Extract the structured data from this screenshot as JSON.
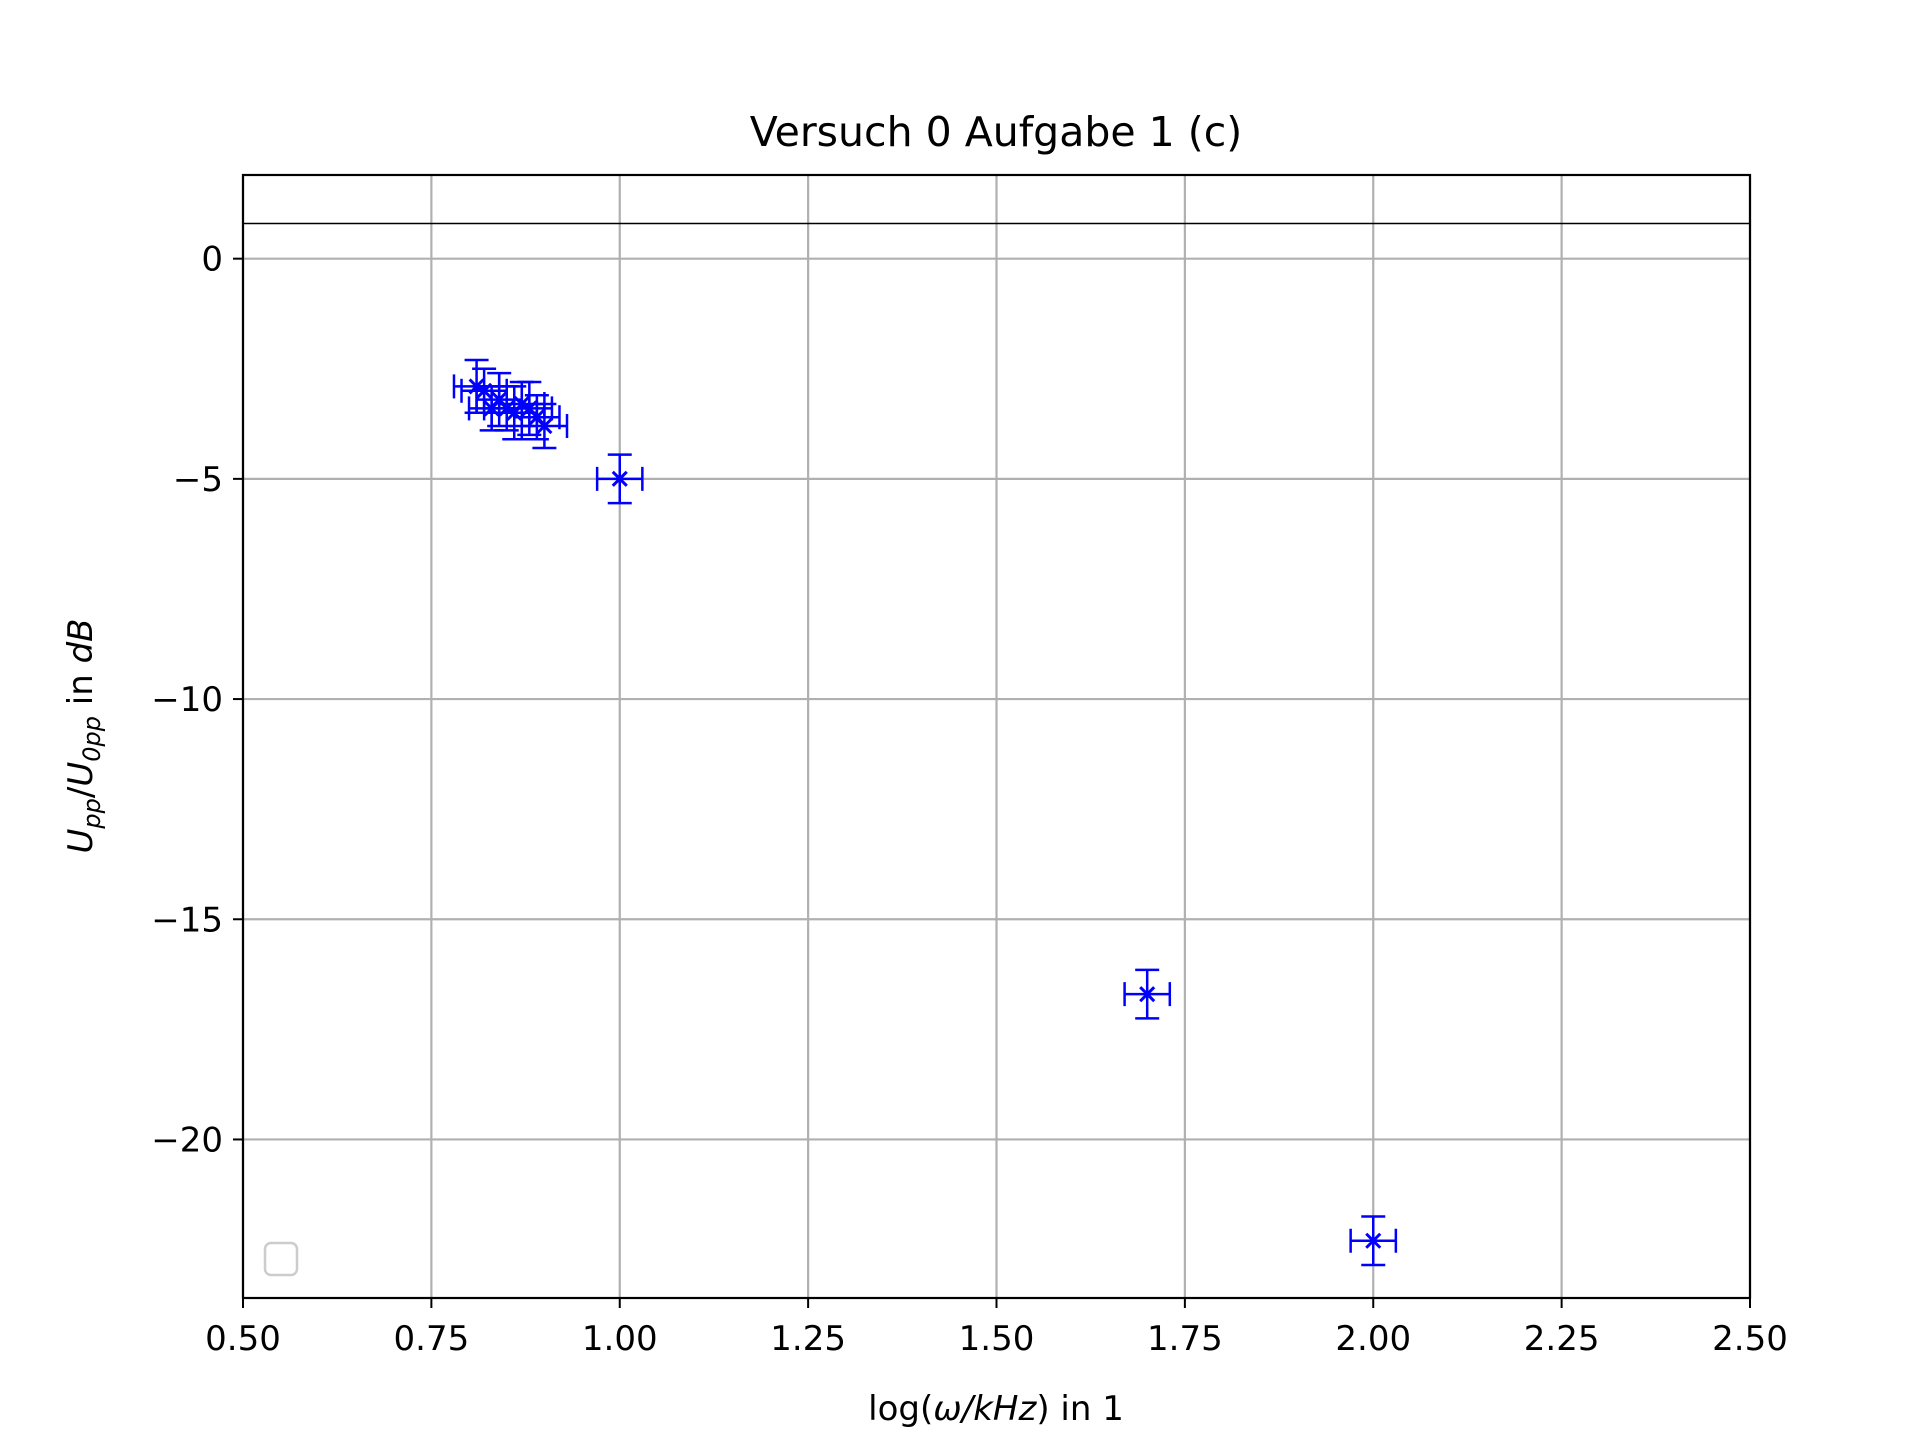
{
  "chart_data": {
    "type": "scatter",
    "title": "Versuch 0 Aufgabe 1 (c)",
    "xlabel": {
      "pre": "log(",
      "ital": "ω/kHz",
      "post": ") in 1"
    },
    "ylabel": {
      "main1": "U",
      "sub1": "pp",
      "slash": "/",
      "main2": "U",
      "sub2": "0pp",
      "post": " in ",
      "ital": "dB"
    },
    "xlim": [
      0.5,
      2.5
    ],
    "ylim": [
      -23.6,
      1.9
    ],
    "xticks": [
      "0.50",
      "0.75",
      "1.00",
      "1.25",
      "1.50",
      "1.75",
      "2.00",
      "2.25",
      "2.50"
    ],
    "yticks": [
      "0",
      "−5",
      "−10",
      "−15",
      "−20"
    ],
    "ytick_values": [
      0,
      -5,
      -10,
      -15,
      -20
    ],
    "grid": true,
    "hline": 0.8,
    "legend": "lower-left, empty",
    "colors": {
      "points": "#0000ff",
      "grid": "#b0b0b0",
      "hline": "#000000"
    },
    "points": [
      {
        "x": 0.81,
        "y": -2.9,
        "xerr": 0.03,
        "yerr": 0.6
      },
      {
        "x": 0.82,
        "y": -3.0,
        "xerr": 0.03,
        "yerr": 0.5
      },
      {
        "x": 0.83,
        "y": -3.4,
        "xerr": 0.03,
        "yerr": 0.5
      },
      {
        "x": 0.84,
        "y": -3.2,
        "xerr": 0.03,
        "yerr": 0.6
      },
      {
        "x": 0.85,
        "y": -3.4,
        "xerr": 0.03,
        "yerr": 0.5
      },
      {
        "x": 0.86,
        "y": -3.5,
        "xerr": 0.03,
        "yerr": 0.6
      },
      {
        "x": 0.87,
        "y": -3.3,
        "xerr": 0.03,
        "yerr": 0.5
      },
      {
        "x": 0.88,
        "y": -3.4,
        "xerr": 0.03,
        "yerr": 0.6
      },
      {
        "x": 0.89,
        "y": -3.6,
        "xerr": 0.03,
        "yerr": 0.5
      },
      {
        "x": 0.9,
        "y": -3.8,
        "xerr": 0.03,
        "yerr": 0.5
      },
      {
        "x": 1.0,
        "y": -5.0,
        "xerr": 0.03,
        "yerr": 0.55
      },
      {
        "x": 1.7,
        "y": -16.7,
        "xerr": 0.03,
        "yerr": 0.55
      },
      {
        "x": 2.0,
        "y": -22.3,
        "xerr": 0.03,
        "yerr": 0.55
      }
    ]
  }
}
